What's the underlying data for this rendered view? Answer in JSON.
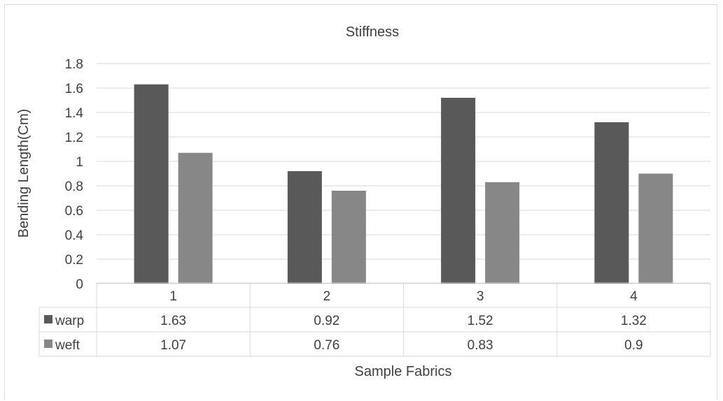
{
  "chart_data": {
    "type": "bar",
    "title": "Stiffness",
    "xlabel": "Sample Fabrics",
    "ylabel": "Bending Length(Cm)",
    "categories": [
      "1",
      "2",
      "3",
      "4"
    ],
    "series": [
      {
        "name": "warp",
        "values": [
          1.63,
          0.92,
          1.52,
          1.32
        ],
        "color": "#595959"
      },
      {
        "name": "weft",
        "values": [
          1.07,
          0.76,
          0.83,
          0.9
        ],
        "color": "#878787"
      }
    ],
    "series_labels": [
      [
        "1.63",
        "0.92",
        "1.52",
        "1.32"
      ],
      [
        "1.07",
        "0.76",
        "0.83",
        "0.9"
      ]
    ],
    "ylim": [
      0,
      1.8
    ],
    "yticks": [
      "0",
      "0.2",
      "0.4",
      "0.6",
      "0.8",
      "1",
      "1.2",
      "1.4",
      "1.6",
      "1.8"
    ],
    "grid": true,
    "legend": "data-table",
    "gridline_color": "#d9d9d9"
  }
}
